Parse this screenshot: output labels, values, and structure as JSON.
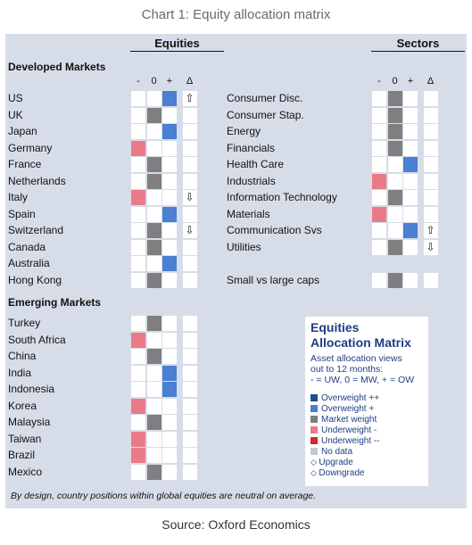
{
  "title": "Chart 1: Equity allocation matrix",
  "source": "Source: Oxford Economics",
  "note": "By design, country positions within global equities are neutral on average.",
  "colors": {
    "OW2": "#1f4e91",
    "OW": "#4a7fd1",
    "MW": "#7f7f7f",
    "UW": "#ea7a86",
    "UW2": "#d4272b",
    "ND": "#c3c8d2"
  },
  "chart_data": {
    "type": "table",
    "scale": [
      "-",
      "0",
      "+",
      "Δ"
    ],
    "panels": [
      {
        "header": "Equities",
        "sections": [
          {
            "name": "Developed Markets",
            "rows": [
              {
                "label": "US",
                "view": "OW",
                "change": "upgrade"
              },
              {
                "label": "UK",
                "view": "MW",
                "change": ""
              },
              {
                "label": "Japan",
                "view": "OW",
                "change": ""
              },
              {
                "label": "Germany",
                "view": "UW",
                "change": ""
              },
              {
                "label": "France",
                "view": "MW",
                "change": ""
              },
              {
                "label": "Netherlands",
                "view": "MW",
                "change": ""
              },
              {
                "label": "Italy",
                "view": "UW",
                "change": "downgrade"
              },
              {
                "label": "Spain",
                "view": "OW",
                "change": ""
              },
              {
                "label": "Switzerland",
                "view": "MW",
                "change": "downgrade"
              },
              {
                "label": "Canada",
                "view": "MW",
                "change": ""
              },
              {
                "label": "Australia",
                "view": "OW",
                "change": ""
              },
              {
                "label": "Hong Kong",
                "view": "MW",
                "change": ""
              }
            ]
          },
          {
            "name": "Emerging Markets",
            "rows": [
              {
                "label": "Turkey",
                "view": "MW",
                "change": ""
              },
              {
                "label": "South Africa",
                "view": "UW",
                "change": ""
              },
              {
                "label": "China",
                "view": "MW",
                "change": ""
              },
              {
                "label": "India",
                "view": "OW",
                "change": ""
              },
              {
                "label": "Indonesia",
                "view": "OW",
                "change": ""
              },
              {
                "label": "Korea",
                "view": "UW",
                "change": ""
              },
              {
                "label": "Malaysia",
                "view": "MW",
                "change": ""
              },
              {
                "label": "Taiwan",
                "view": "UW",
                "change": ""
              },
              {
                "label": "Brazil",
                "view": "UW",
                "change": ""
              },
              {
                "label": "Mexico",
                "view": "MW",
                "change": ""
              }
            ]
          }
        ]
      },
      {
        "header": "Sectors",
        "sections": [
          {
            "name": "",
            "rows": [
              {
                "label": "Consumer Disc.",
                "view": "MW",
                "change": ""
              },
              {
                "label": "Consumer Stap.",
                "view": "MW",
                "change": ""
              },
              {
                "label": "Energy",
                "view": "MW",
                "change": ""
              },
              {
                "label": "Financials",
                "view": "MW",
                "change": ""
              },
              {
                "label": "Health Care",
                "view": "OW",
                "change": ""
              },
              {
                "label": "Industrials",
                "view": "UW",
                "change": ""
              },
              {
                "label": "Information Technology",
                "view": "MW",
                "change": ""
              },
              {
                "label": "Materials",
                "view": "UW",
                "change": ""
              },
              {
                "label": "Communication Svs",
                "view": "OW",
                "change": "upgrade"
              },
              {
                "label": "Utilities",
                "view": "MW",
                "change": "downgrade"
              },
              {
                "label": "Small vs large caps",
                "view": "MW",
                "change": ""
              }
            ]
          }
        ]
      }
    ]
  },
  "legend": {
    "title_line1": "Equities",
    "title_line2": "Allocation Matrix",
    "desc_line1": "Asset allocation views",
    "desc_line2": "out to 12 months:",
    "desc_line3": "- = UW, 0 = MW, + = OW",
    "items": [
      {
        "key": "OW2",
        "label": "Overweight ++"
      },
      {
        "key": "OW",
        "label": "Overweight +"
      },
      {
        "key": "MW",
        "label": "Market weight"
      },
      {
        "key": "UW",
        "label": "Underweight -"
      },
      {
        "key": "UW2",
        "label": "Underweight --"
      },
      {
        "key": "ND",
        "label": "No data"
      },
      {
        "key": "upgrade",
        "label": "Upgrade",
        "symbol": "◇"
      },
      {
        "key": "downgrade",
        "label": "Downgrade",
        "symbol": "◇"
      }
    ]
  }
}
